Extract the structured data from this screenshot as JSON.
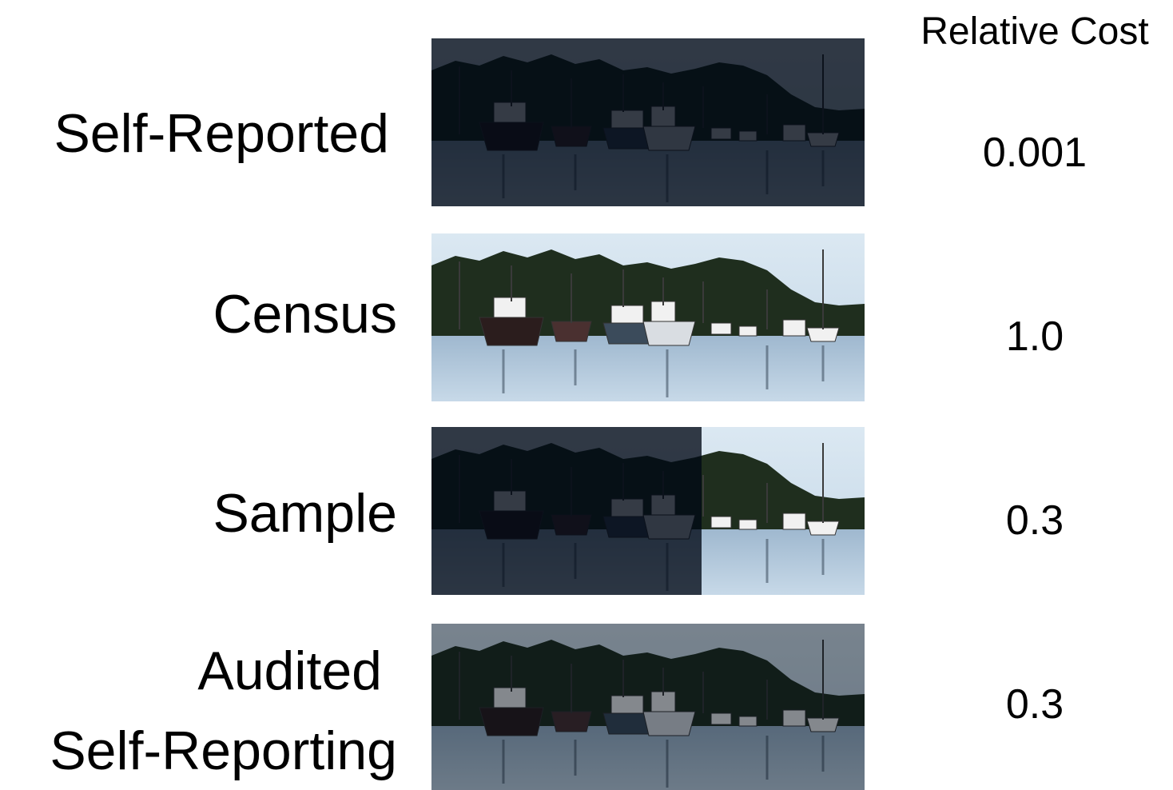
{
  "header": {
    "title": "Relative Cost"
  },
  "rows": [
    {
      "label": [
        "Self-Reported"
      ],
      "cost": "0.001"
    },
    {
      "label": [
        "Census"
      ],
      "cost": "1.0"
    },
    {
      "label": [
        "Sample"
      ],
      "cost": "0.3"
    },
    {
      "label": [
        "Audited",
        "Self-Reporting"
      ],
      "cost": "0.3"
    }
  ]
}
